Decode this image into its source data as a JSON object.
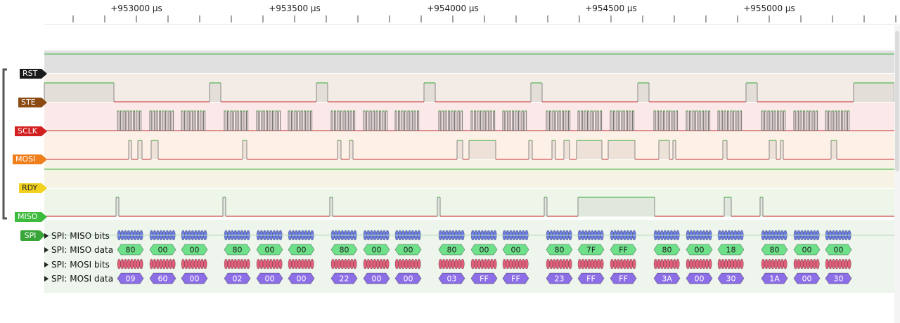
{
  "ruler": {
    "ticks": [
      {
        "label": "+953000 µs",
        "t": 953000
      },
      {
        "label": "+953500 µs",
        "t": 953500
      },
      {
        "label": "+954000 µs",
        "t": 954000
      },
      {
        "label": "+954500 µs",
        "t": 954500
      },
      {
        "label": "+955000 µs",
        "t": 955000
      }
    ]
  },
  "channels": [
    {
      "name": "RST",
      "color": "#1a1a1a"
    },
    {
      "name": "STE",
      "color": "#8a4a12"
    },
    {
      "name": "SCLK",
      "color": "#d21f1f"
    },
    {
      "name": "MOSI",
      "color": "#f07e1b"
    },
    {
      "name": "RDY",
      "color": "#f2d21e"
    },
    {
      "name": "MISO",
      "color": "#3dbb3d"
    }
  ],
  "decoder": {
    "name": "SPI",
    "color": "#38a538",
    "rows": [
      {
        "label": "SPI: MISO bits",
        "kind": "bits",
        "color": "#6b7de0"
      },
      {
        "label": "SPI: MISO data",
        "kind": "data",
        "color": "#6ee08a"
      },
      {
        "label": "SPI: MOSI bits",
        "kind": "bits",
        "color": "#e0607b"
      },
      {
        "label": "SPI: MOSI data",
        "kind": "data",
        "color": "#8c6ee6"
      }
    ],
    "miso_data": [
      "80",
      "00",
      "00",
      "80",
      "00",
      "00",
      "80",
      "00",
      "00",
      "80",
      "00",
      "00",
      "80",
      "7F",
      "FF",
      "80",
      "00",
      "18",
      "80",
      "00",
      "00"
    ],
    "mosi_data": [
      "09",
      "60",
      "00",
      "02",
      "00",
      "00",
      "22",
      "00",
      "00",
      "03",
      "FF",
      "FF",
      "23",
      "FF",
      "FF",
      "3A",
      "00",
      "30",
      "1A",
      "00",
      "30"
    ]
  }
}
